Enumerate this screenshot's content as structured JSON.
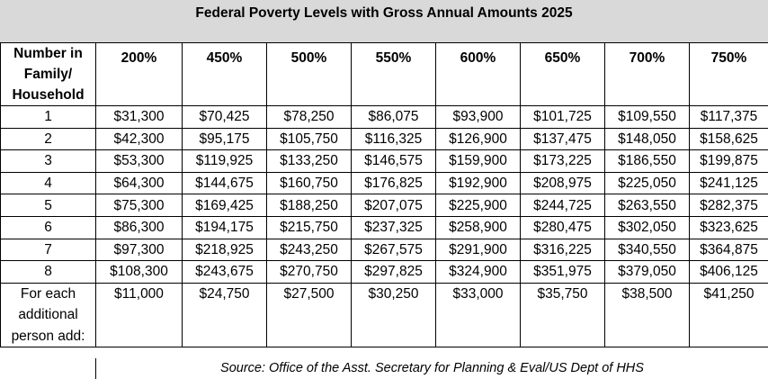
{
  "title": "Federal Poverty Levels with Gross Annual Amounts 2025",
  "table": {
    "first_header": [
      "Number in",
      "Family/",
      "Household"
    ],
    "percent_headers": [
      "200%",
      "450%",
      "500%",
      "550%",
      "600%",
      "650%",
      "700%",
      "750%"
    ],
    "rows": [
      {
        "size": "1",
        "values": [
          "$31,300",
          "$70,425",
          "$78,250",
          "$86,075",
          "$93,900",
          "$101,725",
          "$109,550",
          "$117,375"
        ]
      },
      {
        "size": "2",
        "values": [
          "$42,300",
          "$95,175",
          "$105,750",
          "$116,325",
          "$126,900",
          "$137,475",
          "$148,050",
          "$158,625"
        ]
      },
      {
        "size": "3",
        "values": [
          "$53,300",
          "$119,925",
          "$133,250",
          "$146,575",
          "$159,900",
          "$173,225",
          "$186,550",
          "$199,875"
        ]
      },
      {
        "size": "4",
        "values": [
          "$64,300",
          "$144,675",
          "$160,750",
          "$176,825",
          "$192,900",
          "$208,975",
          "$225,050",
          "$241,125"
        ]
      },
      {
        "size": "5",
        "values": [
          "$75,300",
          "$169,425",
          "$188,250",
          "$207,075",
          "$225,900",
          "$244,725",
          "$263,550",
          "$282,375"
        ]
      },
      {
        "size": "6",
        "values": [
          "$86,300",
          "$194,175",
          "$215,750",
          "$237,325",
          "$258,900",
          "$280,475",
          "$302,050",
          "$323,625"
        ]
      },
      {
        "size": "7",
        "values": [
          "$97,300",
          "$218,925",
          "$243,250",
          "$267,575",
          "$291,900",
          "$316,225",
          "$340,550",
          "$364,875"
        ]
      },
      {
        "size": "8",
        "values": [
          "$108,300",
          "$243,675",
          "$270,750",
          "$297,825",
          "$324,900",
          "$351,975",
          "$379,050",
          "$406,125"
        ]
      }
    ],
    "additional": {
      "label": [
        "For each",
        "additional",
        "person add:"
      ],
      "values": [
        "$11,000",
        "$24,750",
        "$27,500",
        "$30,250",
        "$33,000",
        "$35,750",
        "$38,500",
        "$41,250"
      ]
    }
  },
  "source": "Source: Office of the Asst. Secretary for Planning & Eval/US Dept of HHS"
}
